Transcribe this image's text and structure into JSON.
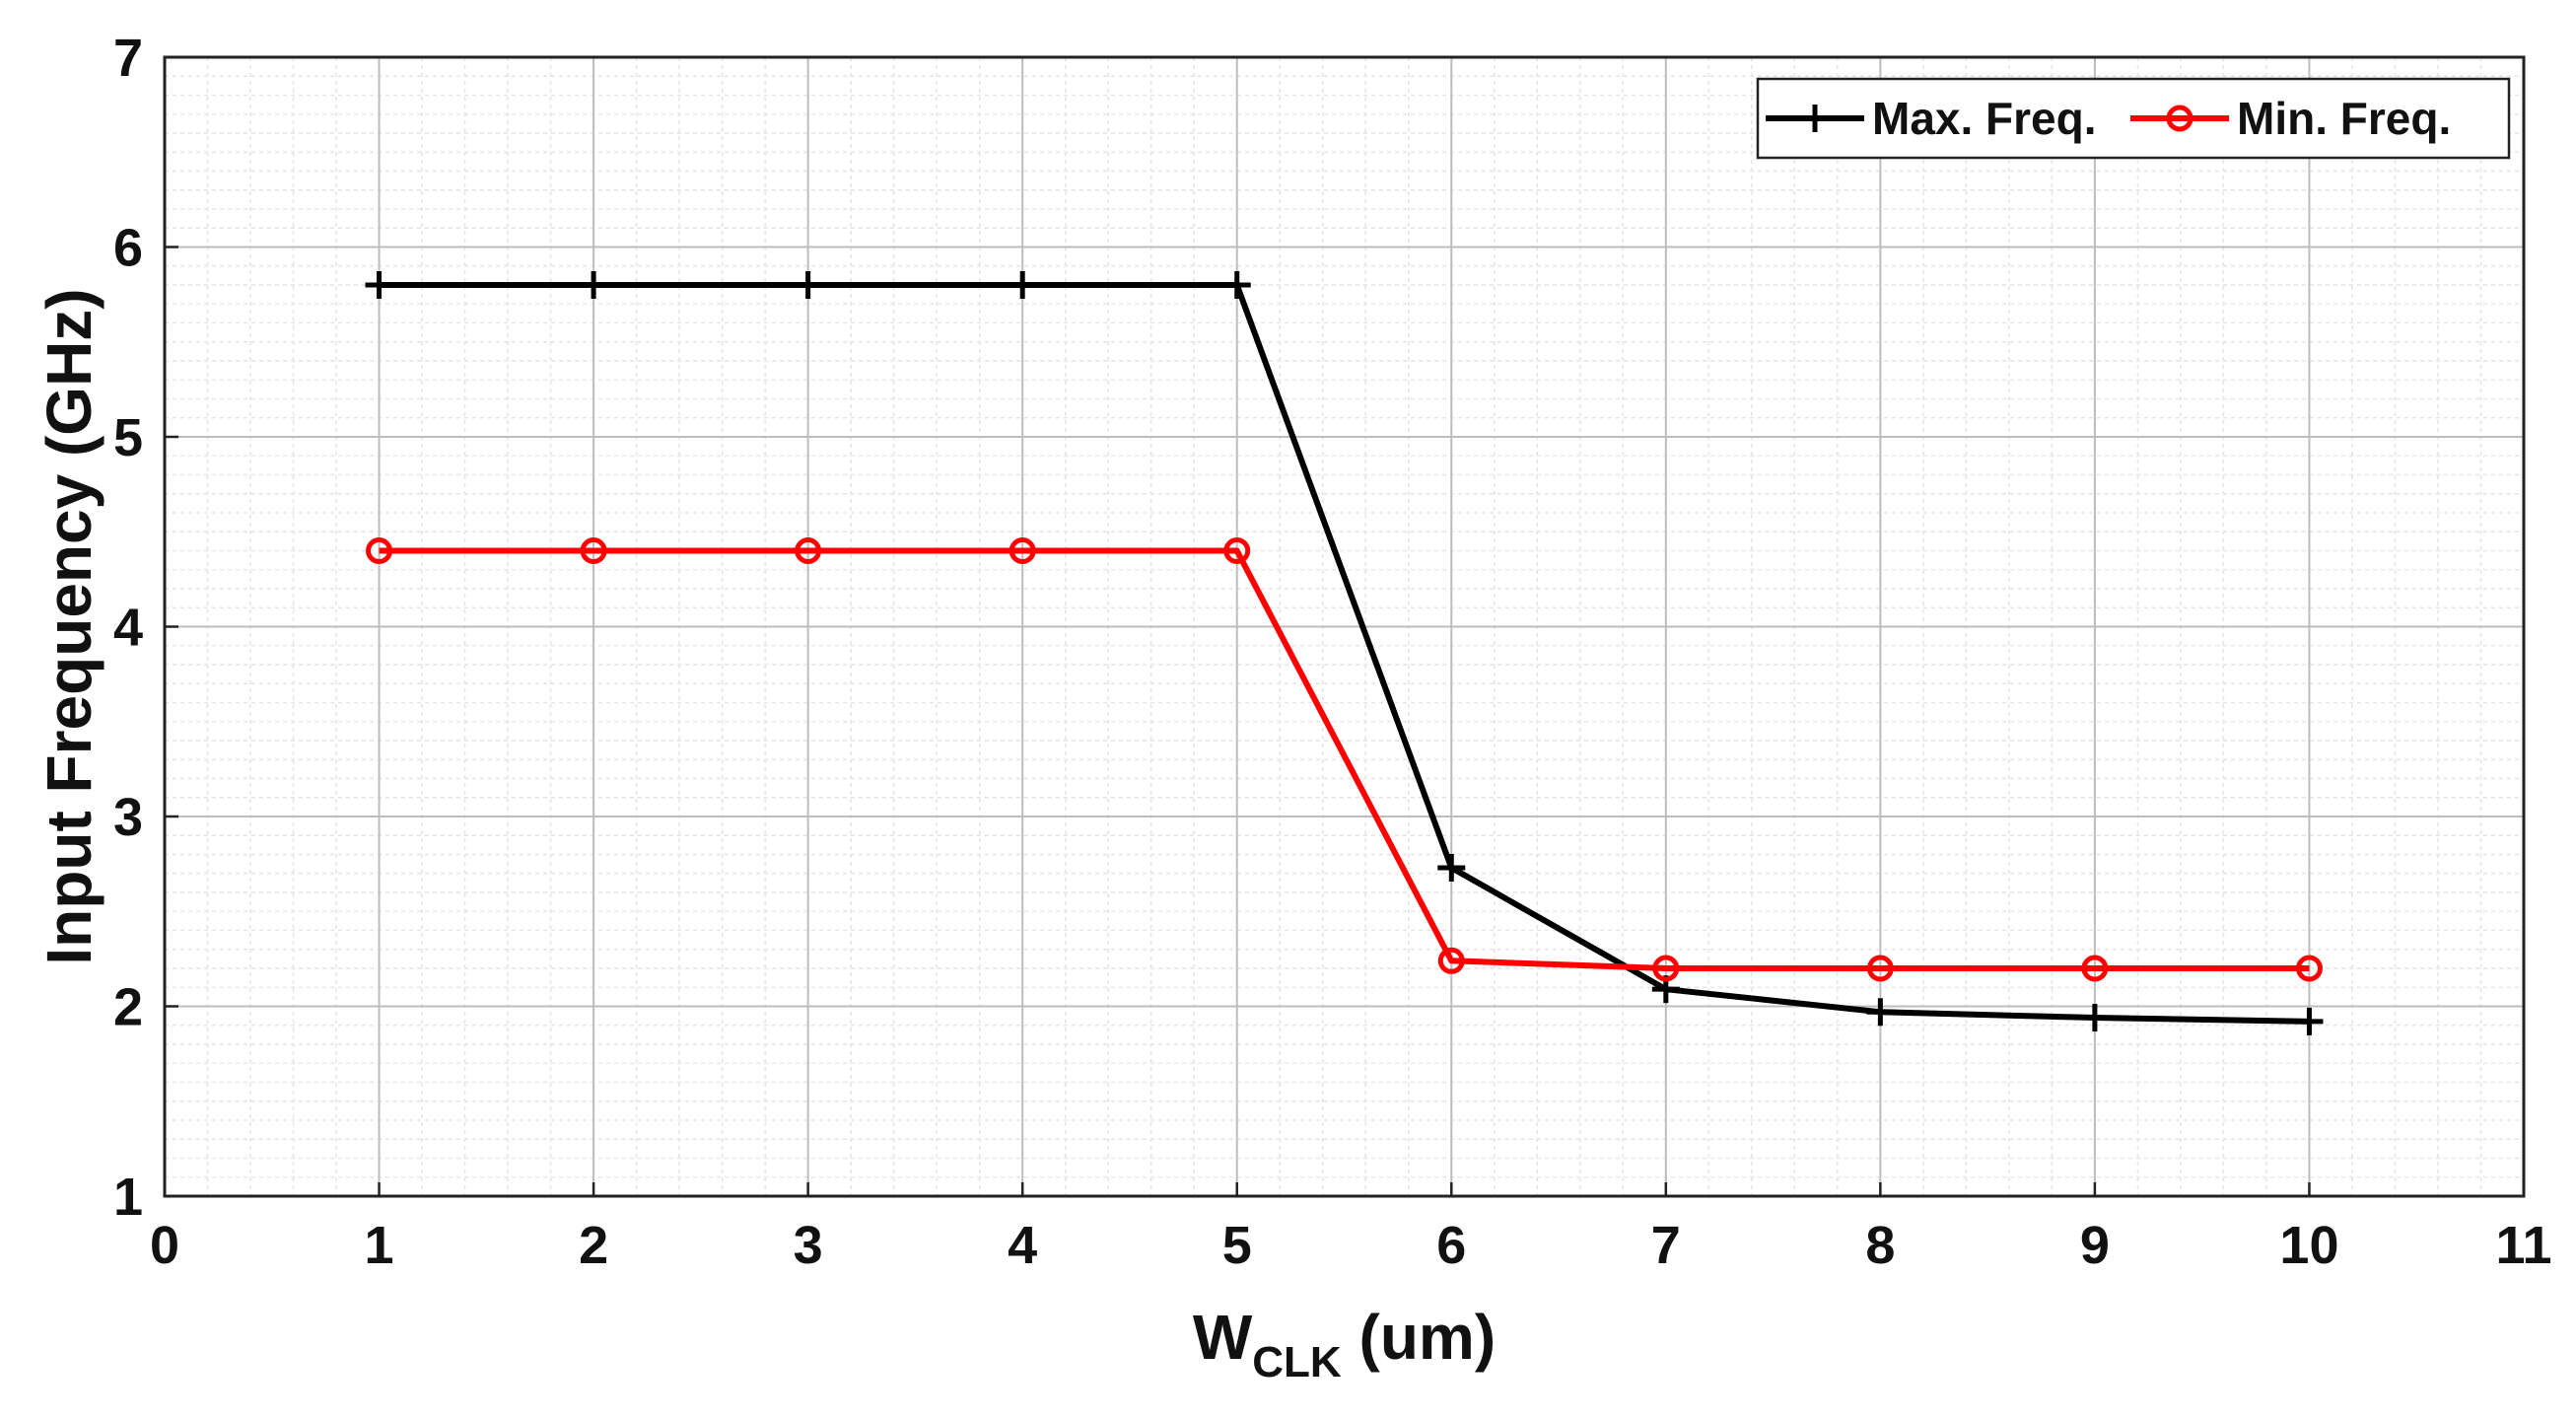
{
  "chart_data": {
    "type": "line",
    "xlabel_main": "W",
    "xlabel_sub": "CLK",
    "xlabel_unit": " (um)",
    "ylabel": "Input Frequency (GHz)",
    "xlim": [
      0,
      11
    ],
    "ylim": [
      1,
      7
    ],
    "xticks": [
      0,
      1,
      2,
      3,
      4,
      5,
      6,
      7,
      8,
      9,
      10,
      11
    ],
    "yticks": [
      1,
      2,
      3,
      4,
      5,
      6,
      7
    ],
    "grid": true,
    "minor_grid": true,
    "legend_position": "top-right",
    "x": [
      1,
      2,
      3,
      4,
      5,
      6,
      7,
      8,
      9,
      10
    ],
    "series": [
      {
        "name": "Max. Freq.",
        "color": "#000000",
        "marker": "plus",
        "values": [
          5.8,
          5.8,
          5.8,
          5.8,
          5.8,
          2.73,
          2.09,
          1.97,
          1.94,
          1.92
        ]
      },
      {
        "name": "Min. Freq.",
        "color": "#ff0000",
        "marker": "circle",
        "values": [
          4.4,
          4.4,
          4.4,
          4.4,
          4.4,
          2.24,
          2.2,
          2.2,
          2.2,
          2.2
        ]
      }
    ]
  }
}
